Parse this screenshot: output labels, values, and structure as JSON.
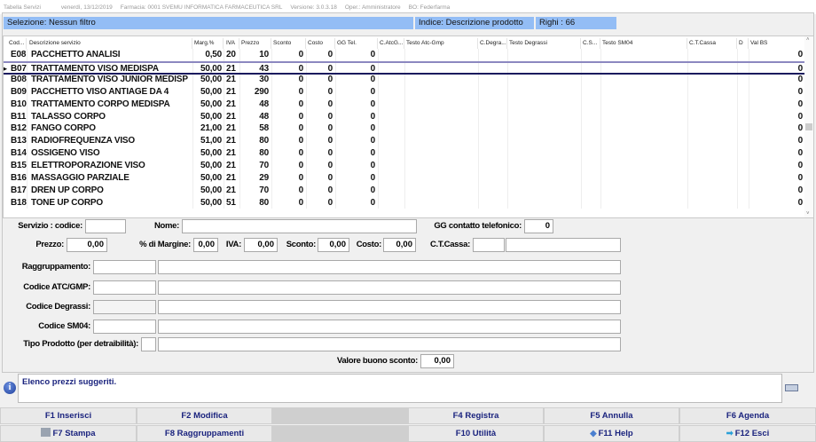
{
  "titlebar": {
    "app": "Tabella Servizi",
    "date": "venerdì, 13/12/2019",
    "pharmacy": "Farmacia: 0001 SVEMU INFORMATICA FARMACEUTICA SRL",
    "version": "Versione: 3.0.3.18",
    "operator": "Oper.: Amministratore",
    "bo": "BO: Federfarma"
  },
  "filter": {
    "selection": "Selezione: Nessun filtro",
    "index": "Indice: Descrizione prodotto",
    "rows": "Righi : 66"
  },
  "grid": {
    "columns": [
      "Cod...",
      "Descrizione servizio",
      "Marg.%",
      "IVA",
      "Prezzo",
      "Sconto",
      "Costo",
      "GG Tel.",
      "C.AtcG...",
      "Testo Atc-Gmp",
      "C.Degra...",
      "Testo Degrassi",
      "C.S...",
      "Testo SM04",
      "C.T.Cassa",
      "D",
      "Val BS"
    ],
    "selected_index": 1,
    "rows": [
      [
        "E08",
        "PACCHETTO ANALISI",
        "0,50",
        "20",
        "10",
        "0",
        "0",
        "0",
        "0"
      ],
      [
        "B07",
        "TRATTAMENTO VISO MEDISPA",
        "50,00",
        "21",
        "43",
        "0",
        "0",
        "0",
        "0"
      ],
      [
        "B08",
        "TRATTAMENTO VISO JUNIOR MEDISP",
        "50,00",
        "21",
        "30",
        "0",
        "0",
        "0",
        "0"
      ],
      [
        "B09",
        "PACCHETTO VISO ANTIAGE DA 4",
        "50,00",
        "21",
        "290",
        "0",
        "0",
        "0",
        "0"
      ],
      [
        "B10",
        "TRATTAMENTO CORPO MEDISPA",
        "50,00",
        "21",
        "48",
        "0",
        "0",
        "0",
        "0"
      ],
      [
        "B11",
        "TALASSO CORPO",
        "50,00",
        "21",
        "48",
        "0",
        "0",
        "0",
        "0"
      ],
      [
        "B12",
        "FANGO CORPO",
        "21,00",
        "21",
        "58",
        "0",
        "0",
        "0",
        "0"
      ],
      [
        "B13",
        "RADIOFREQUENZA VISO",
        "51,00",
        "21",
        "80",
        "0",
        "0",
        "0",
        "0"
      ],
      [
        "B14",
        "OSSIGENO VISO",
        "50,00",
        "21",
        "80",
        "0",
        "0",
        "0",
        "0"
      ],
      [
        "B15",
        "ELETTROPORAZIONE VISO",
        "50,00",
        "21",
        "70",
        "0",
        "0",
        "0",
        "0"
      ],
      [
        "B16",
        "MASSAGGIO PARZIALE",
        "50,00",
        "21",
        "29",
        "0",
        "0",
        "0",
        "0"
      ],
      [
        "B17",
        "DREN UP CORPO",
        "50,00",
        "21",
        "70",
        "0",
        "0",
        "0",
        "0"
      ],
      [
        "B18",
        "TONE UP CORPO",
        "50,00",
        "51",
        "80",
        "0",
        "0",
        "0",
        "0"
      ]
    ]
  },
  "form": {
    "codice_label": "Servizio : codice:",
    "codice": "",
    "nome_label": "Nome:",
    "nome": "",
    "gg_label": "GG contatto telefonico:",
    "gg": "0",
    "prezzo_label": "Prezzo:",
    "prezzo": "0,00",
    "margine_label": "% di Margine:",
    "margine": "0,00",
    "iva_label": "IVA:",
    "iva": "0,00",
    "sconto_label": "Sconto:",
    "sconto": "0,00",
    "costo_label": "Costo:",
    "costo": "0,00",
    "cassa_label": "C.T.Cassa:",
    "cassa": "",
    "cassa_desc": "",
    "raggr_label": "Raggruppamento:",
    "atc_label": "Codice ATC/GMP:",
    "degrassi_label": "Codice Degrassi:",
    "sm04_label": "Codice SM04:",
    "tipo_label": "Tipo Prodotto (per detraibilità):",
    "buono_label": "Valore buono sconto:",
    "buono": "0,00"
  },
  "message": "Elenco prezzi suggeriti.",
  "buttons": {
    "f1": "F1 Inserisci",
    "f2": "F2 Modifica",
    "f4": "F4 Registra",
    "f5": "F5 Annulla",
    "f6": "F6 Agenda",
    "f7": "F7 Stampa",
    "f8": "F8 Raggruppamenti",
    "f10": "F10 Utilità",
    "f11": "F11 Help",
    "f12": "F12 Esci"
  },
  "colors": {
    "filter_bar": "#93bdf5",
    "button_text": "#1a237e",
    "selected_row_border": "#1a1a5e"
  }
}
